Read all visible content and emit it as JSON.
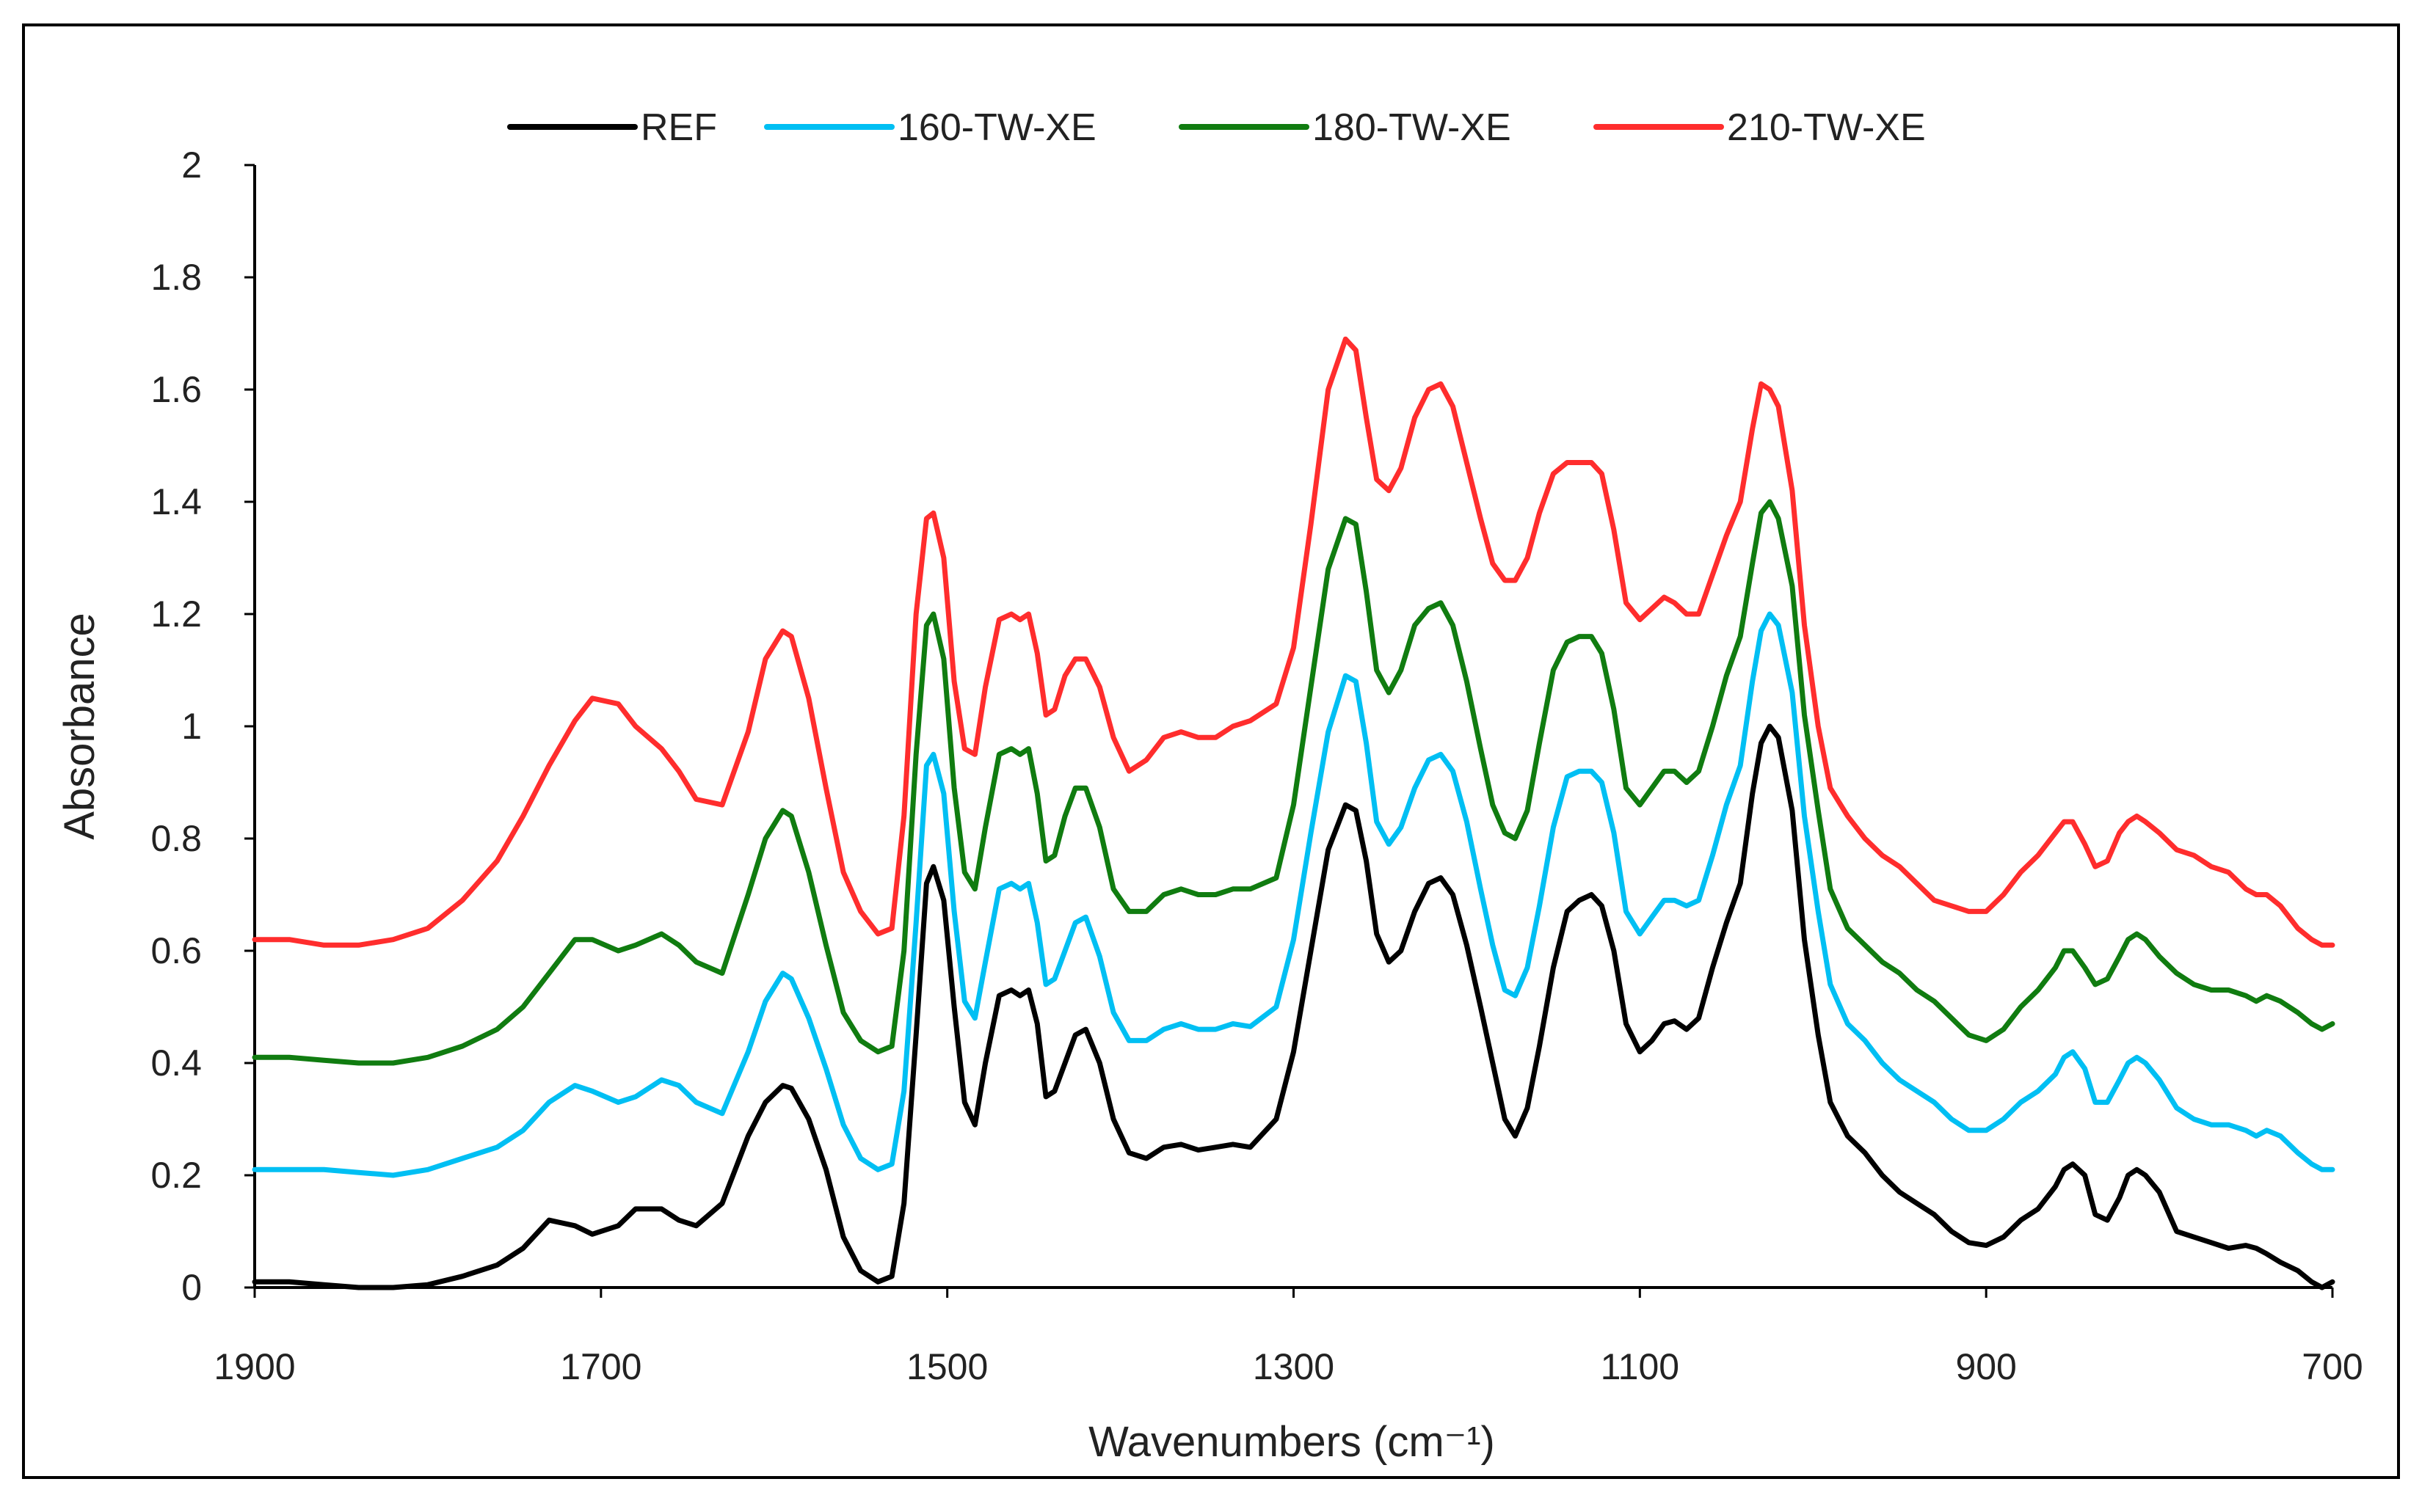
{
  "chart_data": {
    "type": "line",
    "title": "",
    "xlabel": "Wavenumbers (cm⁻¹)",
    "ylabel": "Absorbance",
    "xlim": [
      1900,
      700
    ],
    "x_reversed": true,
    "ylim": [
      0,
      2
    ],
    "xticks": [
      1900,
      1700,
      1500,
      1300,
      1100,
      900,
      700
    ],
    "yticks": [
      0,
      0.2,
      0.4,
      0.6,
      0.8,
      1,
      1.2,
      1.4,
      1.6,
      1.8,
      2
    ],
    "ytick_labels": [
      "0",
      "0.2",
      "0.4",
      "0.6",
      "0.8",
      "1",
      "1.2",
      "1.4",
      "1.6",
      "1.8",
      "2"
    ],
    "grid": false,
    "legend_position": "top",
    "series": [
      {
        "name": "REF",
        "color": "#000000",
        "x": [
          1900,
          1880,
          1860,
          1840,
          1820,
          1800,
          1780,
          1760,
          1745,
          1730,
          1715,
          1705,
          1690,
          1680,
          1665,
          1655,
          1645,
          1630,
          1615,
          1605,
          1595,
          1590,
          1580,
          1570,
          1560,
          1550,
          1540,
          1532,
          1525,
          1518,
          1512,
          1508,
          1502,
          1496,
          1490,
          1484,
          1478,
          1470,
          1463,
          1458,
          1453,
          1448,
          1443,
          1438,
          1432,
          1426,
          1420,
          1412,
          1404,
          1395,
          1385,
          1375,
          1365,
          1355,
          1345,
          1335,
          1325,
          1310,
          1300,
          1290,
          1280,
          1270,
          1264,
          1258,
          1252,
          1245,
          1238,
          1230,
          1222,
          1215,
          1208,
          1200,
          1192,
          1185,
          1178,
          1172,
          1165,
          1158,
          1150,
          1142,
          1135,
          1128,
          1122,
          1115,
          1108,
          1100,
          1093,
          1086,
          1080,
          1073,
          1066,
          1058,
          1050,
          1042,
          1035,
          1030,
          1025,
          1020,
          1012,
          1005,
          997,
          990,
          980,
          970,
          960,
          950,
          940,
          930,
          920,
          910,
          900,
          890,
          880,
          870,
          860,
          855,
          850,
          843,
          837,
          830,
          823,
          818,
          813,
          808,
          800,
          790,
          780,
          770,
          760,
          750,
          744,
          738,
          730,
          720,
          712,
          706,
          700
        ],
        "y": [
          0.01,
          0.01,
          0.005,
          0.0,
          0.0,
          0.005,
          0.02,
          0.04,
          0.07,
          0.12,
          0.11,
          0.095,
          0.11,
          0.14,
          0.14,
          0.12,
          0.11,
          0.15,
          0.27,
          0.33,
          0.36,
          0.355,
          0.3,
          0.21,
          0.09,
          0.03,
          0.01,
          0.02,
          0.15,
          0.45,
          0.72,
          0.75,
          0.69,
          0.5,
          0.33,
          0.29,
          0.4,
          0.52,
          0.53,
          0.52,
          0.53,
          0.47,
          0.34,
          0.35,
          0.4,
          0.45,
          0.46,
          0.4,
          0.3,
          0.24,
          0.23,
          0.25,
          0.255,
          0.245,
          0.25,
          0.255,
          0.25,
          0.3,
          0.42,
          0.6,
          0.78,
          0.86,
          0.85,
          0.76,
          0.63,
          0.58,
          0.6,
          0.67,
          0.72,
          0.73,
          0.7,
          0.61,
          0.5,
          0.4,
          0.3,
          0.27,
          0.32,
          0.43,
          0.57,
          0.67,
          0.69,
          0.7,
          0.68,
          0.6,
          0.47,
          0.42,
          0.44,
          0.47,
          0.475,
          0.46,
          0.48,
          0.57,
          0.65,
          0.72,
          0.88,
          0.97,
          1.0,
          0.98,
          0.85,
          0.62,
          0.45,
          0.33,
          0.27,
          0.24,
          0.2,
          0.17,
          0.15,
          0.13,
          0.1,
          0.08,
          0.075,
          0.09,
          0.12,
          0.14,
          0.18,
          0.21,
          0.22,
          0.2,
          0.13,
          0.12,
          0.16,
          0.2,
          0.21,
          0.2,
          0.17,
          0.1,
          0.09,
          0.08,
          0.07,
          0.075,
          0.07,
          0.06,
          0.045,
          0.03,
          0.01,
          0.0,
          0.01
        ]
      },
      {
        "name": "160-TW-XE",
        "color": "#00bff3",
        "x": [
          1900,
          1880,
          1860,
          1840,
          1820,
          1800,
          1780,
          1760,
          1745,
          1730,
          1715,
          1705,
          1690,
          1680,
          1665,
          1655,
          1645,
          1630,
          1615,
          1605,
          1595,
          1590,
          1580,
          1570,
          1560,
          1550,
          1540,
          1532,
          1525,
          1518,
          1512,
          1508,
          1502,
          1496,
          1490,
          1484,
          1478,
          1470,
          1463,
          1458,
          1453,
          1448,
          1443,
          1438,
          1432,
          1426,
          1420,
          1412,
          1404,
          1395,
          1385,
          1375,
          1365,
          1355,
          1345,
          1335,
          1325,
          1310,
          1300,
          1290,
          1280,
          1270,
          1264,
          1258,
          1252,
          1245,
          1238,
          1230,
          1222,
          1215,
          1208,
          1200,
          1192,
          1185,
          1178,
          1172,
          1165,
          1158,
          1150,
          1142,
          1135,
          1128,
          1122,
          1115,
          1108,
          1100,
          1093,
          1086,
          1080,
          1073,
          1066,
          1058,
          1050,
          1042,
          1035,
          1030,
          1025,
          1020,
          1012,
          1005,
          997,
          990,
          980,
          970,
          960,
          950,
          940,
          930,
          920,
          910,
          900,
          890,
          880,
          870,
          860,
          855,
          850,
          843,
          837,
          830,
          823,
          818,
          813,
          808,
          800,
          790,
          780,
          770,
          760,
          750,
          744,
          738,
          730,
          720,
          712,
          706,
          700
        ],
        "y": [
          0.21,
          0.21,
          0.21,
          0.205,
          0.2,
          0.21,
          0.23,
          0.25,
          0.28,
          0.33,
          0.36,
          0.35,
          0.33,
          0.34,
          0.37,
          0.36,
          0.33,
          0.31,
          0.42,
          0.51,
          0.56,
          0.55,
          0.48,
          0.39,
          0.29,
          0.23,
          0.21,
          0.22,
          0.35,
          0.65,
          0.93,
          0.95,
          0.88,
          0.67,
          0.51,
          0.48,
          0.58,
          0.71,
          0.72,
          0.71,
          0.72,
          0.65,
          0.54,
          0.55,
          0.6,
          0.65,
          0.66,
          0.59,
          0.49,
          0.44,
          0.44,
          0.46,
          0.47,
          0.46,
          0.46,
          0.47,
          0.465,
          0.5,
          0.62,
          0.81,
          0.99,
          1.09,
          1.08,
          0.97,
          0.83,
          0.79,
          0.82,
          0.89,
          0.94,
          0.95,
          0.92,
          0.83,
          0.71,
          0.61,
          0.53,
          0.52,
          0.57,
          0.68,
          0.82,
          0.91,
          0.92,
          0.92,
          0.9,
          0.81,
          0.67,
          0.63,
          0.66,
          0.69,
          0.69,
          0.68,
          0.69,
          0.77,
          0.86,
          0.93,
          1.08,
          1.17,
          1.2,
          1.18,
          1.06,
          0.84,
          0.67,
          0.54,
          0.47,
          0.44,
          0.4,
          0.37,
          0.35,
          0.33,
          0.3,
          0.28,
          0.28,
          0.3,
          0.33,
          0.35,
          0.38,
          0.41,
          0.42,
          0.39,
          0.33,
          0.33,
          0.37,
          0.4,
          0.41,
          0.4,
          0.37,
          0.32,
          0.3,
          0.29,
          0.29,
          0.28,
          0.27,
          0.28,
          0.27,
          0.24,
          0.22,
          0.21,
          0.21
        ]
      },
      {
        "name": "180-TW-XE",
        "color": "#107c10",
        "x": [
          1900,
          1880,
          1860,
          1840,
          1820,
          1800,
          1780,
          1760,
          1745,
          1730,
          1715,
          1705,
          1690,
          1680,
          1665,
          1655,
          1645,
          1630,
          1615,
          1605,
          1595,
          1590,
          1580,
          1570,
          1560,
          1550,
          1540,
          1532,
          1525,
          1518,
          1512,
          1508,
          1502,
          1496,
          1490,
          1484,
          1478,
          1470,
          1463,
          1458,
          1453,
          1448,
          1443,
          1438,
          1432,
          1426,
          1420,
          1412,
          1404,
          1395,
          1385,
          1375,
          1365,
          1355,
          1345,
          1335,
          1325,
          1310,
          1300,
          1290,
          1280,
          1270,
          1264,
          1258,
          1252,
          1245,
          1238,
          1230,
          1222,
          1215,
          1208,
          1200,
          1192,
          1185,
          1178,
          1172,
          1165,
          1158,
          1150,
          1142,
          1135,
          1128,
          1122,
          1115,
          1108,
          1100,
          1093,
          1086,
          1080,
          1073,
          1066,
          1058,
          1050,
          1042,
          1035,
          1030,
          1025,
          1020,
          1012,
          1005,
          997,
          990,
          980,
          970,
          960,
          950,
          940,
          930,
          920,
          910,
          900,
          890,
          880,
          870,
          860,
          855,
          850,
          843,
          837,
          830,
          823,
          818,
          813,
          808,
          800,
          790,
          780,
          770,
          760,
          750,
          744,
          738,
          730,
          720,
          712,
          706,
          700
        ],
        "y": [
          0.41,
          0.41,
          0.405,
          0.4,
          0.4,
          0.41,
          0.43,
          0.46,
          0.5,
          0.56,
          0.62,
          0.62,
          0.6,
          0.61,
          0.63,
          0.61,
          0.58,
          0.56,
          0.7,
          0.8,
          0.85,
          0.84,
          0.74,
          0.61,
          0.49,
          0.44,
          0.42,
          0.43,
          0.6,
          0.95,
          1.18,
          1.2,
          1.12,
          0.89,
          0.74,
          0.71,
          0.82,
          0.95,
          0.96,
          0.95,
          0.96,
          0.88,
          0.76,
          0.77,
          0.84,
          0.89,
          0.89,
          0.82,
          0.71,
          0.67,
          0.67,
          0.7,
          0.71,
          0.7,
          0.7,
          0.71,
          0.71,
          0.73,
          0.86,
          1.07,
          1.28,
          1.37,
          1.36,
          1.24,
          1.1,
          1.06,
          1.1,
          1.18,
          1.21,
          1.22,
          1.18,
          1.08,
          0.96,
          0.86,
          0.81,
          0.8,
          0.85,
          0.97,
          1.1,
          1.15,
          1.16,
          1.16,
          1.13,
          1.03,
          0.89,
          0.86,
          0.89,
          0.92,
          0.92,
          0.9,
          0.92,
          1.0,
          1.09,
          1.16,
          1.29,
          1.38,
          1.4,
          1.37,
          1.25,
          1.02,
          0.85,
          0.71,
          0.64,
          0.61,
          0.58,
          0.56,
          0.53,
          0.51,
          0.48,
          0.45,
          0.44,
          0.46,
          0.5,
          0.53,
          0.57,
          0.6,
          0.6,
          0.57,
          0.54,
          0.55,
          0.59,
          0.62,
          0.63,
          0.62,
          0.59,
          0.56,
          0.54,
          0.53,
          0.53,
          0.52,
          0.51,
          0.52,
          0.51,
          0.49,
          0.47,
          0.46,
          0.47
        ]
      },
      {
        "name": "210-TW-XE",
        "color": "#ff2d2d",
        "x": [
          1900,
          1880,
          1860,
          1840,
          1820,
          1800,
          1780,
          1760,
          1745,
          1730,
          1715,
          1705,
          1690,
          1680,
          1665,
          1655,
          1645,
          1630,
          1615,
          1605,
          1595,
          1590,
          1580,
          1570,
          1560,
          1550,
          1540,
          1532,
          1525,
          1518,
          1512,
          1508,
          1502,
          1496,
          1490,
          1484,
          1478,
          1470,
          1463,
          1458,
          1453,
          1448,
          1443,
          1438,
          1432,
          1426,
          1420,
          1412,
          1404,
          1395,
          1385,
          1375,
          1365,
          1355,
          1345,
          1335,
          1325,
          1310,
          1300,
          1290,
          1280,
          1270,
          1264,
          1258,
          1252,
          1245,
          1238,
          1230,
          1222,
          1215,
          1208,
          1200,
          1192,
          1185,
          1178,
          1172,
          1165,
          1158,
          1150,
          1142,
          1135,
          1128,
          1122,
          1115,
          1108,
          1100,
          1093,
          1086,
          1080,
          1073,
          1066,
          1058,
          1050,
          1042,
          1035,
          1030,
          1025,
          1020,
          1012,
          1005,
          997,
          990,
          980,
          970,
          960,
          950,
          940,
          930,
          920,
          910,
          900,
          890,
          880,
          870,
          860,
          855,
          850,
          843,
          837,
          830,
          823,
          818,
          813,
          808,
          800,
          790,
          780,
          770,
          760,
          750,
          744,
          738,
          730,
          720,
          712,
          706,
          700
        ],
        "y": [
          0.62,
          0.62,
          0.61,
          0.61,
          0.62,
          0.64,
          0.69,
          0.76,
          0.84,
          0.93,
          1.01,
          1.05,
          1.04,
          1.0,
          0.96,
          0.92,
          0.87,
          0.86,
          0.99,
          1.12,
          1.17,
          1.16,
          1.05,
          0.89,
          0.74,
          0.67,
          0.63,
          0.64,
          0.84,
          1.2,
          1.37,
          1.38,
          1.3,
          1.08,
          0.96,
          0.95,
          1.07,
          1.19,
          1.2,
          1.19,
          1.2,
          1.13,
          1.02,
          1.03,
          1.09,
          1.12,
          1.12,
          1.07,
          0.98,
          0.92,
          0.94,
          0.98,
          0.99,
          0.98,
          0.98,
          1.0,
          1.01,
          1.04,
          1.14,
          1.36,
          1.6,
          1.69,
          1.67,
          1.55,
          1.44,
          1.42,
          1.46,
          1.55,
          1.6,
          1.61,
          1.57,
          1.47,
          1.37,
          1.29,
          1.26,
          1.26,
          1.3,
          1.38,
          1.45,
          1.47,
          1.47,
          1.47,
          1.45,
          1.35,
          1.22,
          1.19,
          1.21,
          1.23,
          1.22,
          1.2,
          1.2,
          1.27,
          1.34,
          1.4,
          1.53,
          1.61,
          1.6,
          1.57,
          1.42,
          1.18,
          1.0,
          0.89,
          0.84,
          0.8,
          0.77,
          0.75,
          0.72,
          0.69,
          0.68,
          0.67,
          0.67,
          0.7,
          0.74,
          0.77,
          0.81,
          0.83,
          0.83,
          0.79,
          0.75,
          0.76,
          0.81,
          0.83,
          0.84,
          0.83,
          0.81,
          0.78,
          0.77,
          0.75,
          0.74,
          0.71,
          0.7,
          0.7,
          0.68,
          0.64,
          0.62,
          0.61,
          0.61
        ]
      }
    ]
  }
}
